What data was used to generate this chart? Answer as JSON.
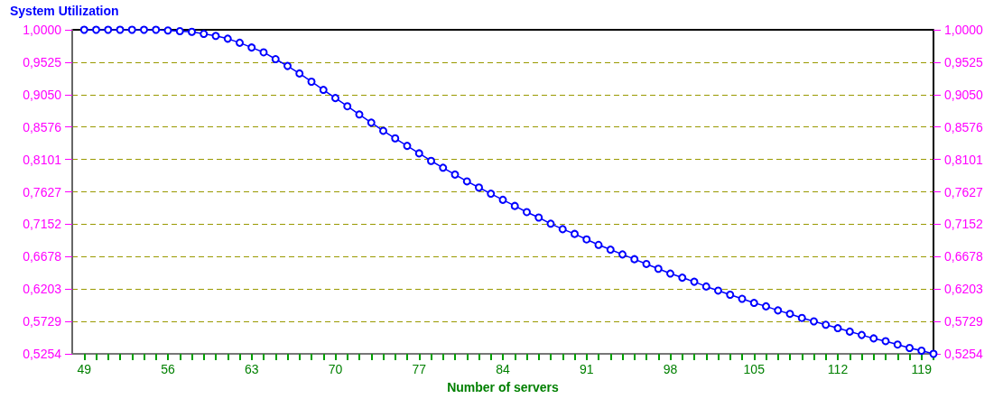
{
  "chart_data": {
    "type": "line",
    "title": "System Utilization",
    "xlabel": "Number of servers",
    "x": [
      49,
      50,
      51,
      52,
      53,
      54,
      55,
      56,
      57,
      58,
      59,
      60,
      61,
      62,
      63,
      64,
      65,
      66,
      67,
      68,
      69,
      70,
      71,
      72,
      73,
      74,
      75,
      76,
      77,
      78,
      79,
      80,
      81,
      82,
      83,
      84,
      85,
      86,
      87,
      88,
      89,
      90,
      91,
      92,
      93,
      94,
      95,
      96,
      97,
      98,
      99,
      100,
      101,
      102,
      103,
      104,
      105,
      106,
      107,
      108,
      109,
      110,
      111,
      112,
      113,
      114,
      115,
      116,
      117,
      118,
      119,
      120
    ],
    "series": [
      {
        "color": "#0000ff",
        "values": [
          1.0,
          1.0,
          1.0,
          1.0,
          1.0,
          1.0,
          1.0,
          0.999,
          0.998,
          0.997,
          0.994,
          0.991,
          0.987,
          0.981,
          0.974,
          0.967,
          0.957,
          0.947,
          0.936,
          0.924,
          0.912,
          0.9,
          0.888,
          0.876,
          0.864,
          0.852,
          0.841,
          0.83,
          0.819,
          0.808,
          0.798,
          0.788,
          0.778,
          0.769,
          0.76,
          0.751,
          0.742,
          0.733,
          0.725,
          0.716,
          0.708,
          0.701,
          0.693,
          0.685,
          0.678,
          0.671,
          0.664,
          0.657,
          0.65,
          0.643,
          0.637,
          0.631,
          0.624,
          0.618,
          0.612,
          0.606,
          0.6,
          0.595,
          0.589,
          0.584,
          0.578,
          0.573,
          0.568,
          0.563,
          0.558,
          0.553,
          0.548,
          0.544,
          0.539,
          0.534,
          0.53,
          0.5254
        ]
      }
    ],
    "xlim": [
      48,
      120
    ],
    "xticks": [
      49,
      {
        "value": 50,
        "label": null
      },
      {
        "value": 51,
        "label": null
      },
      {
        "value": 52,
        "label": null
      },
      {
        "value": 53,
        "label": null
      },
      {
        "value": 54,
        "label": null
      },
      {
        "value": 55,
        "label": null
      },
      56,
      {
        "value": 57,
        "label": null
      },
      {
        "value": 58,
        "label": null
      },
      {
        "value": 59,
        "label": null
      },
      {
        "value": 60,
        "label": null
      },
      {
        "value": 61,
        "label": null
      },
      {
        "value": 62,
        "label": null
      },
      63,
      {
        "value": 64,
        "label": null
      },
      {
        "value": 65,
        "label": null
      },
      {
        "value": 66,
        "label": null
      },
      {
        "value": 67,
        "label": null
      },
      {
        "value": 68,
        "label": null
      },
      {
        "value": 69,
        "label": null
      },
      70,
      {
        "value": 71,
        "label": null
      },
      {
        "value": 72,
        "label": null
      },
      {
        "value": 73,
        "label": null
      },
      {
        "value": 74,
        "label": null
      },
      {
        "value": 75,
        "label": null
      },
      {
        "value": 76,
        "label": null
      },
      77,
      {
        "value": 78,
        "label": null
      },
      {
        "value": 79,
        "label": null
      },
      {
        "value": 80,
        "label": null
      },
      {
        "value": 81,
        "label": null
      },
      {
        "value": 82,
        "label": null
      },
      {
        "value": 83,
        "label": null
      },
      84,
      {
        "value": 85,
        "label": null
      },
      {
        "value": 86,
        "label": null
      },
      {
        "value": 87,
        "label": null
      },
      {
        "value": 88,
        "label": null
      },
      {
        "value": 89,
        "label": null
      },
      {
        "value": 90,
        "label": null
      },
      91,
      {
        "value": 92,
        "label": null
      },
      {
        "value": 93,
        "label": null
      },
      {
        "value": 94,
        "label": null
      },
      {
        "value": 95,
        "label": null
      },
      {
        "value": 96,
        "label": null
      },
      {
        "value": 97,
        "label": null
      },
      98,
      {
        "value": 99,
        "label": null
      },
      {
        "value": 100,
        "label": null
      },
      {
        "value": 101,
        "label": null
      },
      {
        "value": 102,
        "label": null
      },
      {
        "value": 103,
        "label": null
      },
      {
        "value": 104,
        "label": null
      },
      105,
      {
        "value": 106,
        "label": null
      },
      {
        "value": 107,
        "label": null
      },
      {
        "value": 108,
        "label": null
      },
      {
        "value": 109,
        "label": null
      },
      {
        "value": 110,
        "label": null
      },
      {
        "value": 111,
        "label": null
      },
      112,
      {
        "value": 113,
        "label": null
      },
      {
        "value": 114,
        "label": null
      },
      {
        "value": 115,
        "label": null
      },
      {
        "value": 116,
        "label": null
      },
      {
        "value": 117,
        "label": null
      },
      {
        "value": 118,
        "label": null
      },
      119,
      {
        "value": 120,
        "label": null
      }
    ],
    "ylim": [
      0.5254,
      1.0
    ],
    "yticks": [
      {
        "value": 0.5254,
        "label": "0,5254"
      },
      {
        "value": 0.5729,
        "label": "0,5729"
      },
      {
        "value": 0.6203,
        "label": "0,6203"
      },
      {
        "value": 0.6678,
        "label": "0,6678"
      },
      {
        "value": 0.7152,
        "label": "0,7152"
      },
      {
        "value": 0.7627,
        "label": "0,7627"
      },
      {
        "value": 0.8101,
        "label": "0,8101"
      },
      {
        "value": 0.8576,
        "label": "0,8576"
      },
      {
        "value": 0.905,
        "label": "0,9050"
      },
      {
        "value": 0.9525,
        "label": "0,9525"
      },
      {
        "value": 1.0,
        "label": "1,0000"
      }
    ],
    "y2lim": [
      0.5254,
      1.0
    ],
    "y2ticks": [
      {
        "value": 0.5254,
        "label": "0,5254"
      },
      {
        "value": 0.5729,
        "label": "0,5729"
      },
      {
        "value": 0.6203,
        "label": "0,6203"
      },
      {
        "value": 0.6678,
        "label": "0,6678"
      },
      {
        "value": 0.7152,
        "label": "0,7152"
      },
      {
        "value": 0.7627,
        "label": "0,7627"
      },
      {
        "value": 0.8101,
        "label": "0,8101"
      },
      {
        "value": 0.8576,
        "label": "0,8576"
      },
      {
        "value": 0.905,
        "label": "0,9050"
      },
      {
        "value": 0.9525,
        "label": "0,9525"
      },
      {
        "value": 1.0,
        "label": "1,0000"
      }
    ],
    "grid": "y",
    "marker": "circle",
    "line_style": "solid"
  }
}
